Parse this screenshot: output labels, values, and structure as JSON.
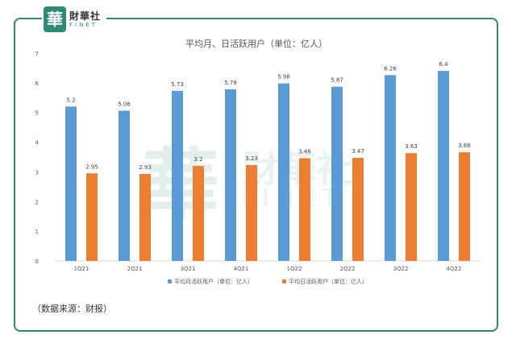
{
  "brand": {
    "logo_cn": "財華社",
    "logo_en": "FINET",
    "logo_mark": "華"
  },
  "watermark": {
    "cn": "財華社",
    "en": "FINET"
  },
  "source_note": "（数据来源：财报）",
  "colors": {
    "series1": "#5b9bd5",
    "series2": "#ed7d31",
    "frame": "#2e8a74"
  },
  "chart_data": {
    "type": "bar",
    "title": "平均月、日活跃用户（单位：亿人）",
    "categories": [
      "1Q21",
      "2Q21",
      "3Q21",
      "4Q21",
      "1Q22",
      "2Q22",
      "3Q22",
      "4Q22"
    ],
    "series": [
      {
        "name": "平均月活跃用户（单位：亿人）",
        "values": [
          5.2,
          5.06,
          5.73,
          5.78,
          5.98,
          5.87,
          6.26,
          6.4
        ]
      },
      {
        "name": "平均日活跃用户（单位：亿人）",
        "values": [
          2.95,
          2.93,
          3.2,
          3.23,
          3.46,
          3.47,
          3.63,
          3.66
        ]
      }
    ],
    "value_labels": [
      [
        "5.2",
        "5.06",
        "5.73",
        "5.78",
        "5.98",
        "5.87",
        "6.26",
        "6.4"
      ],
      [
        "2.95",
        "2.93",
        "3.2",
        "3.23",
        "3.46",
        "3.47",
        "3.63",
        "3.66"
      ]
    ],
    "ylim": [
      0,
      7
    ],
    "yticks": [
      0,
      1,
      2,
      3,
      4,
      5,
      6,
      7
    ],
    "grid": false,
    "legend_position": "bottom"
  }
}
